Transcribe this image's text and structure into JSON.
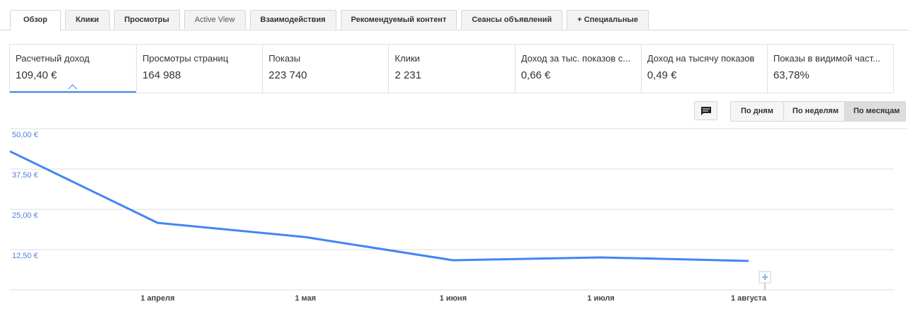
{
  "tabs": [
    "Обзор",
    "Клики",
    "Просмотры",
    "Active View",
    "Взаимодействия",
    "Рекомендуемый контент",
    "Сеансы объявлений",
    "+ Специальные"
  ],
  "active_tab": 0,
  "metrics": [
    {
      "label": "Расчетный доход",
      "value": "109,40 €"
    },
    {
      "label": "Просмотры страниц",
      "value": "164 988"
    },
    {
      "label": "Показы",
      "value": "223 740"
    },
    {
      "label": "Клики",
      "value": "2 231"
    },
    {
      "label": "Доход за тыс. показов с...",
      "value": "0,66 €"
    },
    {
      "label": "Доход на тысячу показов",
      "value": "0,49 €"
    },
    {
      "label": "Показы в видимой част...",
      "value": "63,78%"
    }
  ],
  "active_metric": 0,
  "period_buttons": [
    "По дням",
    "По неделям",
    "По месяцам"
  ],
  "active_period": 2,
  "chart_data": {
    "type": "line",
    "categories": [
      null,
      "1 апреля",
      "1 мая",
      "1 июня",
      "1 июля",
      "1 августа"
    ],
    "values": [
      43.0,
      20.8,
      16.4,
      9.2,
      10.1,
      9.0
    ],
    "color": "#4285f4",
    "ylim": [
      0,
      50
    ],
    "yticks": [
      {
        "value": 12.5,
        "label": "12,50 €"
      },
      {
        "value": 25,
        "label": "25,00 €"
      },
      {
        "value": 37.5,
        "label": "37,50 €"
      },
      {
        "value": 50,
        "label": "50,00 €"
      }
    ],
    "grid": true
  }
}
